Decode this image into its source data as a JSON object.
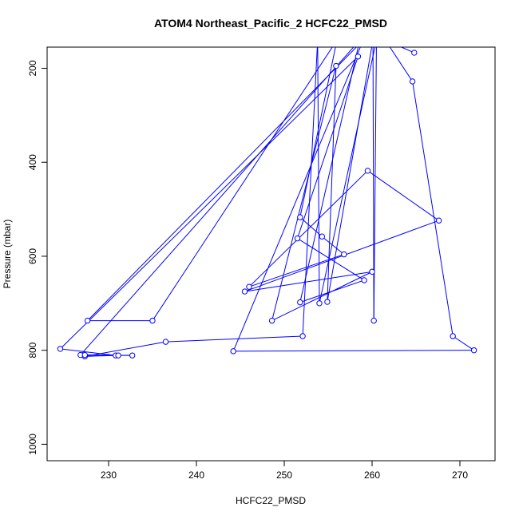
{
  "chart_data": {
    "type": "line",
    "title": "ATOM4 Northeast_Pacific_2 HCFC22_PMSD",
    "xlabel": "HCFC22_PMSD",
    "ylabel": "Pressure (mbar)",
    "xlim": [
      223,
      274
    ],
    "ylim": [
      1035,
      155
    ],
    "y_reversed": true,
    "xticks": [
      230,
      240,
      250,
      260,
      270
    ],
    "yticks": [
      200,
      400,
      600,
      800,
      1000
    ],
    "marker": "open-circle",
    "color": "#0000ff",
    "series": [
      {
        "points": [
          [
            264.8,
            167
          ],
          [
            261.5,
            140
          ],
          [
            264.6,
            228
          ],
          [
            269.2,
            770
          ],
          [
            271.6,
            800
          ],
          [
            244.2,
            802
          ],
          [
            259.0,
            140
          ],
          [
            227.6,
            737
          ],
          [
            235.0,
            737
          ],
          [
            256.0,
            140
          ],
          [
            251.8,
            517
          ],
          [
            254.3,
            558
          ],
          [
            256.8,
            596
          ],
          [
            246.0,
            665
          ],
          [
            259.5,
            418
          ],
          [
            267.6,
            524
          ],
          [
            245.5,
            675
          ],
          [
            260.0,
            633
          ],
          [
            248.6,
            737
          ],
          [
            255.9,
            195
          ],
          [
            254.9,
            697
          ],
          [
            260.1,
            140
          ],
          [
            260.2,
            737
          ],
          [
            260.5,
            140
          ],
          [
            254.0,
            700
          ],
          [
            253.8,
            140
          ],
          [
            252.1,
            770
          ],
          [
            236.5,
            782
          ],
          [
            227.3,
            813
          ],
          [
            230.8,
            811
          ],
          [
            224.5,
            797
          ],
          [
            258.4,
            175
          ],
          [
            251.5,
            562
          ],
          [
            259.1,
            651
          ],
          [
            251.8,
            698
          ],
          [
            258.6,
            140
          ],
          [
            226.8,
            810
          ],
          [
            231.1,
            811
          ],
          [
            232.7,
            811
          ],
          [
            227.3,
            810
          ]
        ]
      }
    ]
  }
}
